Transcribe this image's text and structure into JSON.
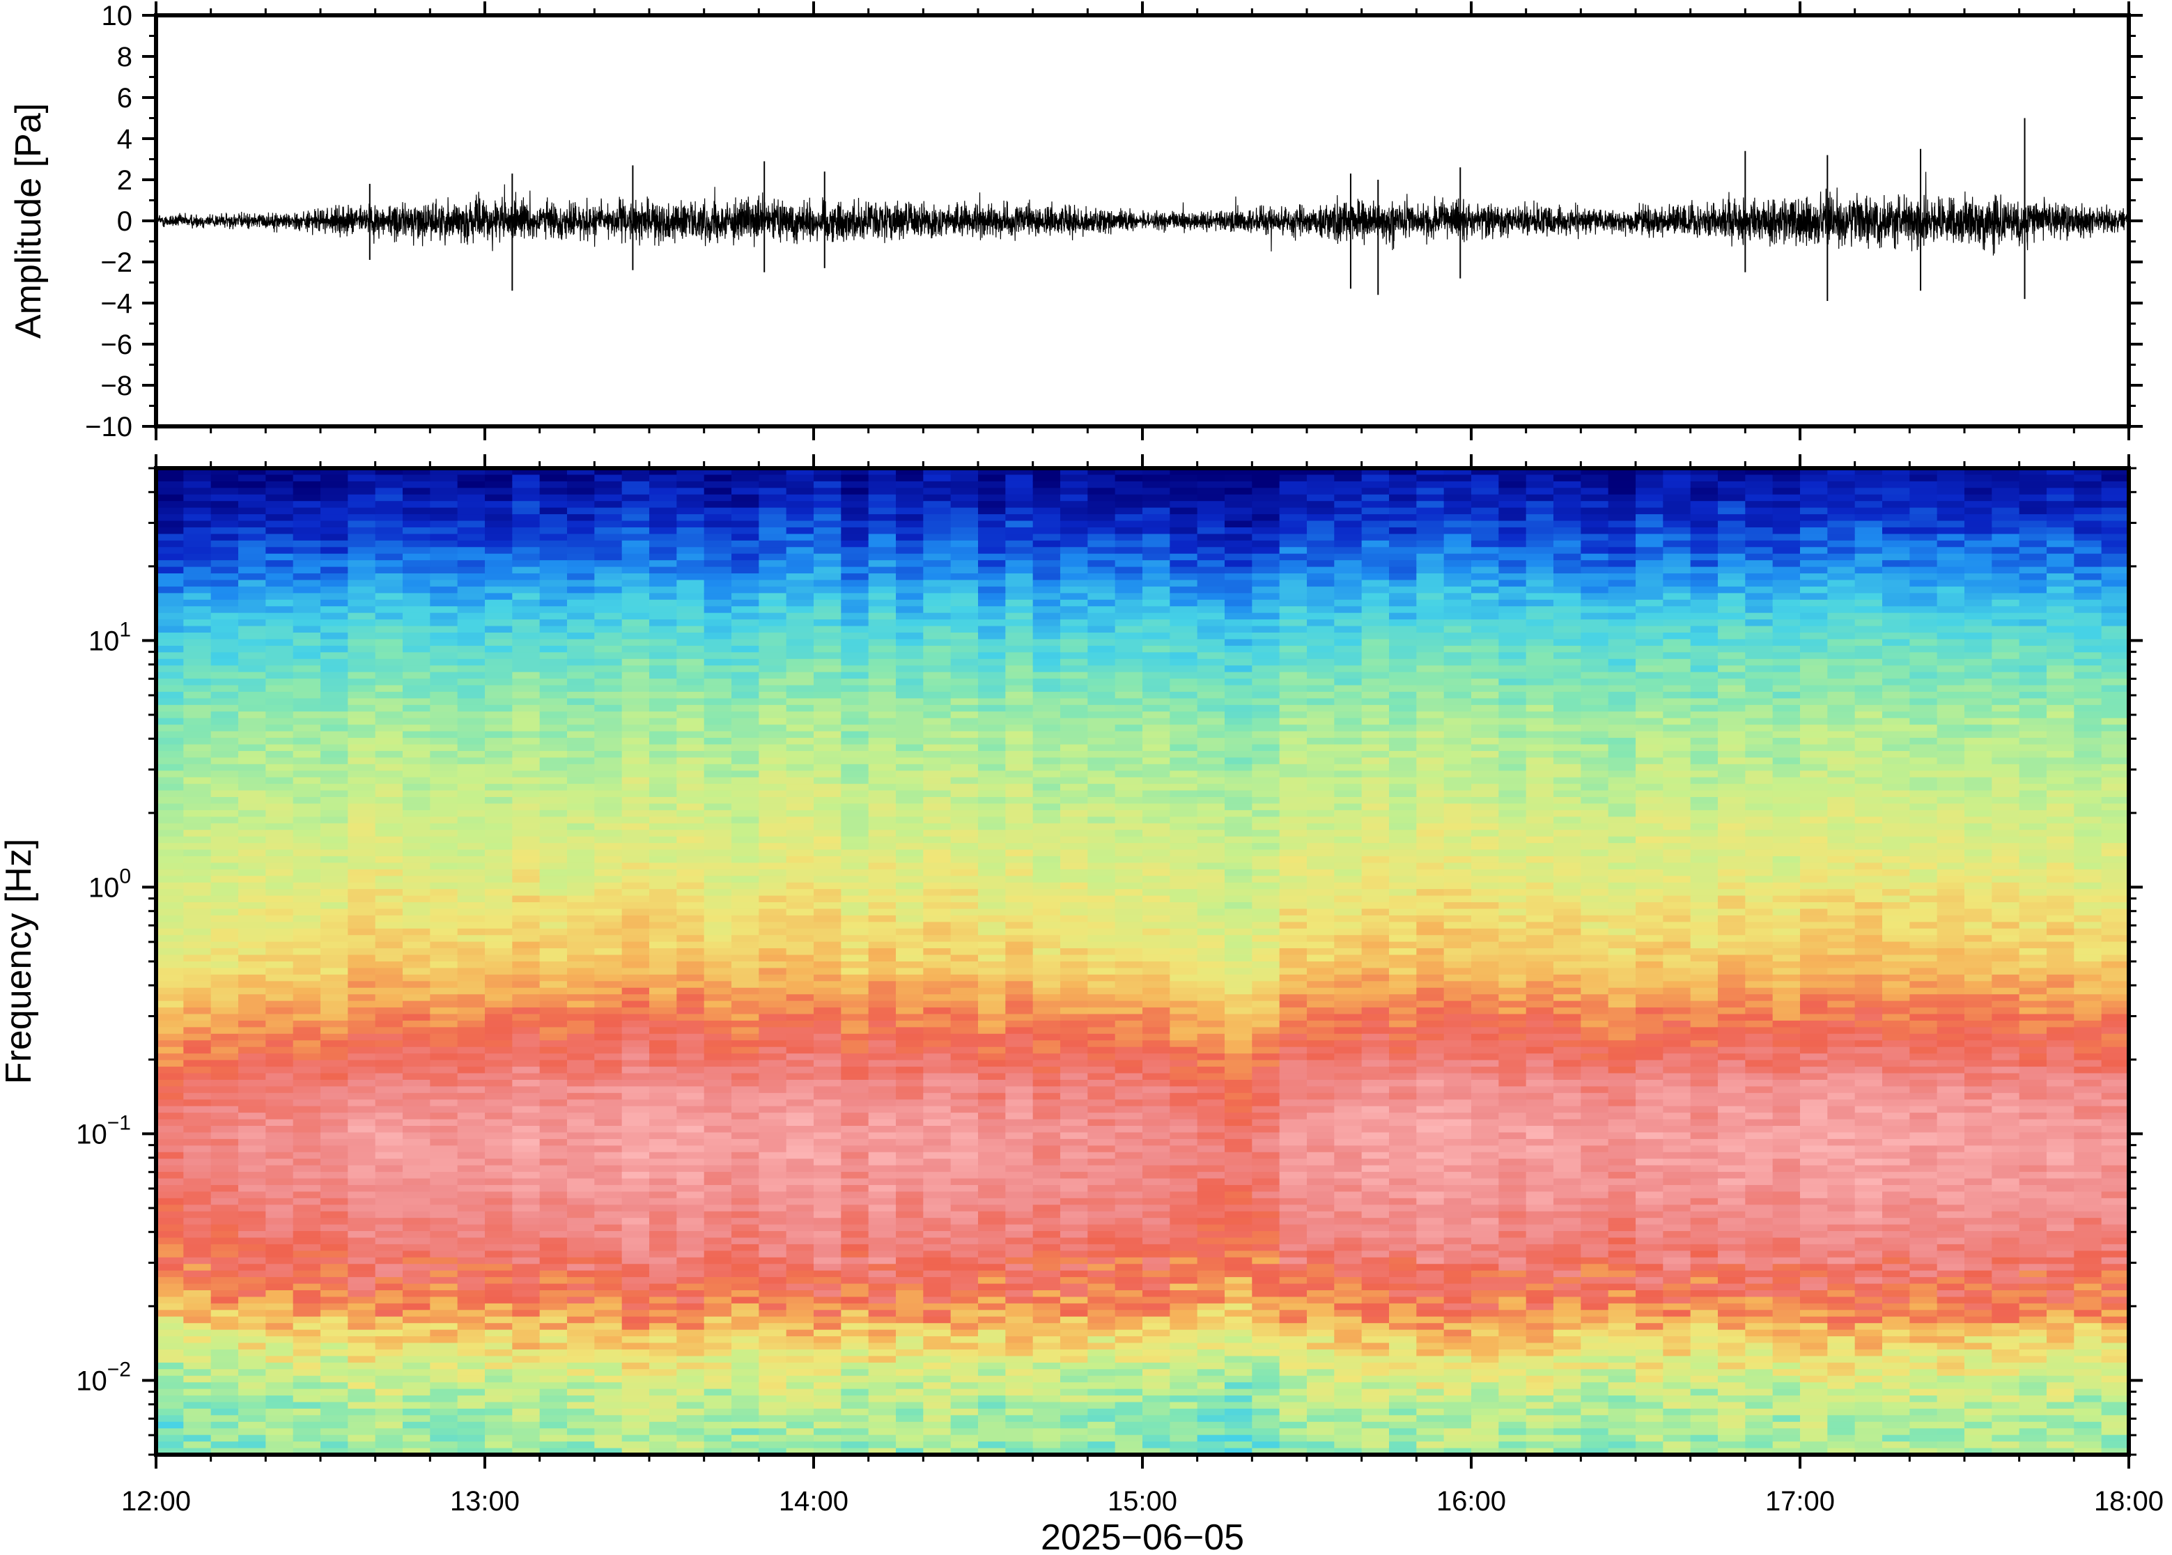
{
  "chart_data": [
    {
      "type": "line",
      "title": "",
      "ylabel": "Amplitude [Pa]",
      "ylim": [
        -10,
        10
      ],
      "yticks": [
        10,
        8,
        6,
        4,
        2,
        0,
        -2,
        -4,
        -6,
        -8,
        -10
      ],
      "ytick_labels": [
        "10",
        "8",
        "6",
        "4",
        "2",
        "0",
        "−2",
        "−4",
        "−6",
        "−8",
        "−10"
      ],
      "xlim": [
        "12:00",
        "18:00"
      ],
      "series_color": "#000000",
      "envelope": {
        "x_hours": [
          12.0,
          12.4,
          12.6,
          13.0,
          13.2,
          13.6,
          13.8,
          14.0,
          14.4,
          14.8,
          15.0,
          15.2,
          15.6,
          16.0,
          16.4,
          16.8,
          17.0,
          17.2,
          17.6,
          18.0
        ],
        "half_amplitude": [
          0.4,
          0.5,
          0.9,
          1.3,
          1.1,
          1.2,
          1.2,
          1.3,
          1.0,
          0.9,
          0.5,
          0.6,
          1.2,
          1.1,
          0.7,
          1.3,
          1.5,
          1.4,
          1.5,
          0.6
        ]
      },
      "peaks": [
        {
          "time": "12:39",
          "min": -1.9,
          "max": 1.8
        },
        {
          "time": "13:05",
          "min": -3.4,
          "max": 2.3
        },
        {
          "time": "13:27",
          "min": -2.4,
          "max": 2.7
        },
        {
          "time": "13:51",
          "min": -2.5,
          "max": 2.9
        },
        {
          "time": "14:02",
          "min": -2.3,
          "max": 2.4
        },
        {
          "time": "15:38",
          "min": -3.3,
          "max": 2.3
        },
        {
          "time": "15:43",
          "min": -3.6,
          "max": 2.0
        },
        {
          "time": "15:58",
          "min": -2.8,
          "max": 2.6
        },
        {
          "time": "16:50",
          "min": -2.5,
          "max": 3.4
        },
        {
          "time": "17:05",
          "min": -3.9,
          "max": 3.2
        },
        {
          "time": "17:22",
          "min": -3.4,
          "max": 3.5
        },
        {
          "time": "17:41",
          "min": -3.8,
          "max": 5.0
        }
      ]
    },
    {
      "type": "heatmap",
      "title": "",
      "ylabel": "Frequency [Hz]",
      "xlabel": "2025−06−05",
      "yscale": "log",
      "ylim": [
        0.005,
        50
      ],
      "yticks": [
        0.01,
        0.1,
        1,
        10
      ],
      "ytick_labels": [
        {
          "base": "10",
          "exp": "−2"
        },
        {
          "base": "10",
          "exp": "−1"
        },
        {
          "base": "10",
          "exp": "0"
        },
        {
          "base": "10",
          "exp": "1"
        }
      ],
      "xlim": [
        "12:00",
        "18:00"
      ],
      "xticks": [
        "12:00",
        "13:00",
        "14:00",
        "15:00",
        "16:00",
        "17:00",
        "18:00"
      ],
      "colormap": [
        "#00007a",
        "#0a28c8",
        "#1e8cf0",
        "#46d2e6",
        "#82e6b4",
        "#c8f08c",
        "#f0e678",
        "#f6b45a",
        "#f06450",
        "#f08c8c",
        "#fcb4b4"
      ],
      "profile": {
        "freq_hz": [
          0.005,
          0.007,
          0.01,
          0.015,
          0.02,
          0.03,
          0.04,
          0.06,
          0.1,
          0.15,
          0.2,
          0.3,
          0.5,
          1,
          2,
          5,
          10,
          15,
          20,
          30,
          50
        ],
        "level": [
          0.42,
          0.44,
          0.5,
          0.62,
          0.74,
          0.82,
          0.86,
          0.9,
          0.92,
          0.88,
          0.82,
          0.74,
          0.63,
          0.56,
          0.51,
          0.43,
          0.33,
          0.25,
          0.18,
          0.1,
          0.02
        ]
      },
      "time_variation": {
        "time_hours": [
          12.0,
          12.5,
          13.0,
          13.5,
          14.0,
          14.5,
          15.0,
          15.3,
          15.5,
          16.0,
          16.5,
          17.0,
          17.5,
          18.0
        ],
        "offset": [
          -0.04,
          0.0,
          0.03,
          0.03,
          0.02,
          0.01,
          -0.01,
          -0.05,
          0.02,
          0.03,
          0.01,
          0.03,
          0.02,
          0.01
        ]
      }
    }
  ]
}
